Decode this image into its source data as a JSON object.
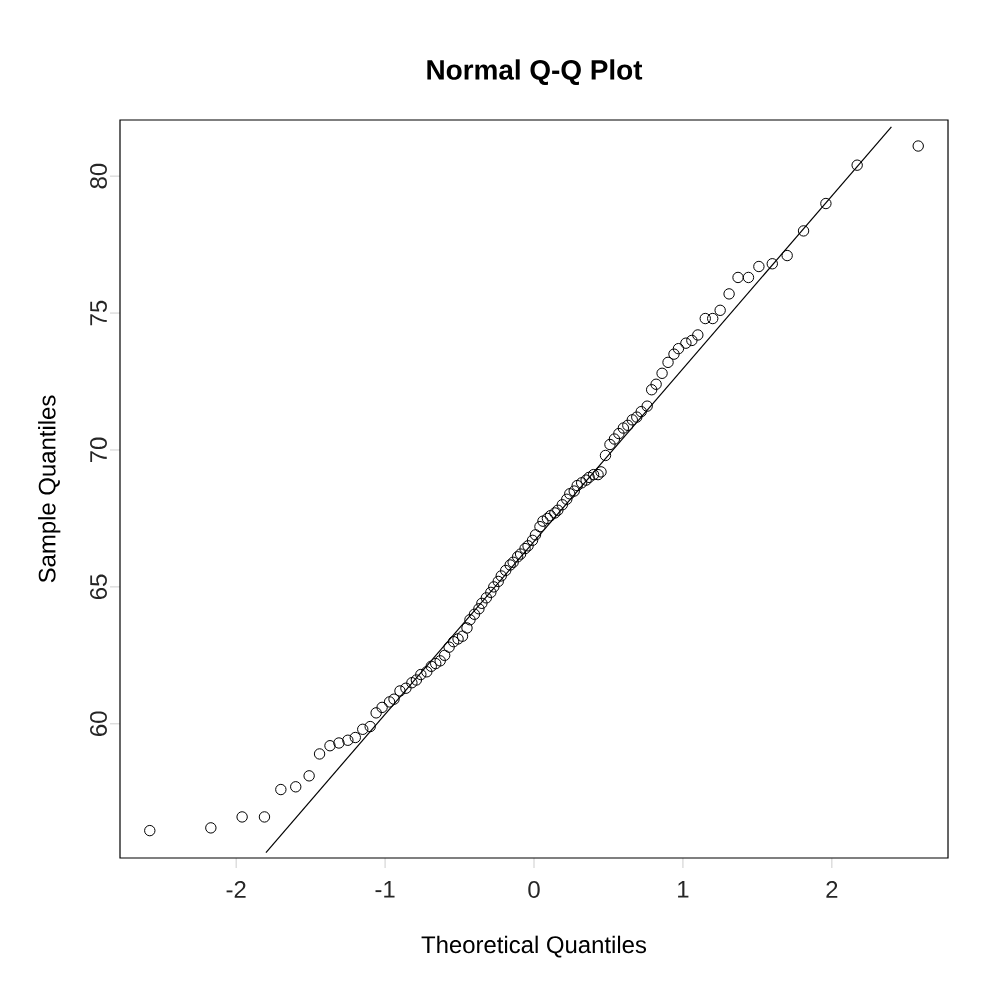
{
  "chart_data": {
    "type": "scatter",
    "title": "Normal Q-Q Plot",
    "xlabel": "Theoretical Quantiles",
    "ylabel": "Sample Quantiles",
    "xlim": [
      -2.78,
      2.78
    ],
    "ylim": [
      55.1,
      82.05
    ],
    "xticks": [
      -2,
      -1,
      0,
      1,
      2
    ],
    "yticks": [
      60,
      65,
      70,
      75,
      80
    ],
    "grid": false,
    "marker": "circle",
    "series": [
      {
        "color": "#000000",
        "x": [
          -2.58,
          -2.17,
          -1.96,
          -1.81,
          -1.7,
          -1.6,
          -1.51,
          -1.44,
          -1.37,
          -1.31,
          -1.25,
          -1.2,
          -1.15,
          -1.1,
          -1.06,
          -1.02,
          -0.97,
          -0.94,
          -0.9,
          -0.86,
          -0.82,
          -0.79,
          -0.76,
          -0.72,
          -0.69,
          -0.66,
          -0.63,
          -0.6,
          -0.57,
          -0.54,
          -0.51,
          -0.48,
          -0.45,
          -0.43,
          -0.4,
          -0.37,
          -0.35,
          -0.32,
          -0.29,
          -0.27,
          -0.24,
          -0.22,
          -0.19,
          -0.16,
          -0.14,
          -0.11,
          -0.09,
          -0.06,
          -0.04,
          -0.01,
          0.01,
          0.04,
          0.06,
          0.09,
          0.11,
          0.14,
          0.16,
          0.19,
          0.22,
          0.24,
          0.27,
          0.29,
          0.32,
          0.35,
          0.37,
          0.4,
          0.43,
          0.45,
          0.48,
          0.51,
          0.54,
          0.57,
          0.6,
          0.63,
          0.66,
          0.69,
          0.72,
          0.76,
          0.79,
          0.82,
          0.86,
          0.9,
          0.94,
          0.97,
          1.02,
          1.06,
          1.1,
          1.15,
          1.2,
          1.25,
          1.31,
          1.37,
          1.44,
          1.51,
          1.6,
          1.7,
          1.81,
          1.96,
          2.17,
          2.58
        ],
        "values": [
          56.1,
          56.2,
          56.6,
          56.6,
          57.6,
          57.7,
          58.1,
          58.9,
          59.2,
          59.3,
          59.4,
          59.5,
          59.8,
          59.9,
          60.4,
          60.6,
          60.8,
          60.9,
          61.2,
          61.3,
          61.5,
          61.6,
          61.8,
          61.9,
          62.1,
          62.2,
          62.3,
          62.5,
          62.8,
          63.0,
          63.1,
          63.2,
          63.5,
          63.8,
          64.0,
          64.2,
          64.4,
          64.6,
          64.8,
          65.0,
          65.2,
          65.4,
          65.6,
          65.8,
          65.9,
          66.1,
          66.2,
          66.4,
          66.5,
          66.7,
          66.9,
          67.2,
          67.4,
          67.5,
          67.6,
          67.7,
          67.8,
          68.0,
          68.2,
          68.4,
          68.5,
          68.7,
          68.8,
          68.9,
          69.0,
          69.1,
          69.1,
          69.2,
          69.8,
          70.2,
          70.4,
          70.6,
          70.8,
          70.9,
          71.1,
          71.2,
          71.4,
          71.6,
          72.2,
          72.4,
          72.8,
          73.2,
          73.5,
          73.7,
          73.9,
          74.0,
          74.2,
          74.8,
          74.8,
          75.1,
          75.7,
          76.3,
          76.3,
          76.7,
          76.8,
          77.1,
          78.0,
          79.0,
          80.4,
          81.1
        ]
      },
      {
        "type": "line",
        "color": "#000000",
        "marker": "none",
        "x": [
          -1.8,
          2.4
        ],
        "values": [
          55.3,
          81.8
        ]
      }
    ]
  }
}
